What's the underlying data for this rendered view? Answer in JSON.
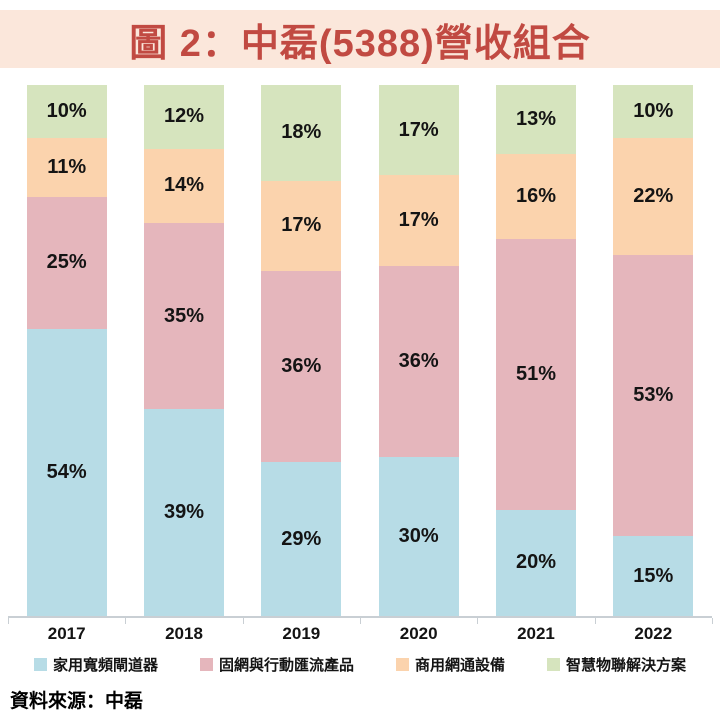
{
  "title": "圖 2：中磊(5388)營收組合",
  "source": "資料來源：中磊",
  "colors": {
    "title_text": "#C14A42",
    "title_bg": "#FBE7DB",
    "axis": "#C9CFD4",
    "label_text": "#141414"
  },
  "chart_data": {
    "type": "bar",
    "stacked": true,
    "percent_stacked": true,
    "title": "圖 2：中磊(5388)營收組合",
    "xlabel": "",
    "ylabel": "",
    "ylim": [
      0,
      100
    ],
    "grid": false,
    "legend_position": "bottom",
    "value_suffix": "%",
    "categories": [
      "2017",
      "2018",
      "2019",
      "2020",
      "2021",
      "2022"
    ],
    "series": [
      {
        "name": "家用寬頻閘道器",
        "color": "#B7DCE6",
        "values": [
          54,
          39,
          29,
          30,
          20,
          15
        ]
      },
      {
        "name": "固網與行動匯流產品",
        "color": "#E5B6BC",
        "values": [
          25,
          35,
          36,
          36,
          51,
          53
        ]
      },
      {
        "name": "商用網通設備",
        "color": "#FBD3AD",
        "values": [
          11,
          14,
          17,
          17,
          16,
          22
        ]
      },
      {
        "name": "智慧物聯解決方案",
        "color": "#D6E4BE",
        "values": [
          10,
          12,
          18,
          17,
          13,
          10
        ]
      }
    ]
  }
}
